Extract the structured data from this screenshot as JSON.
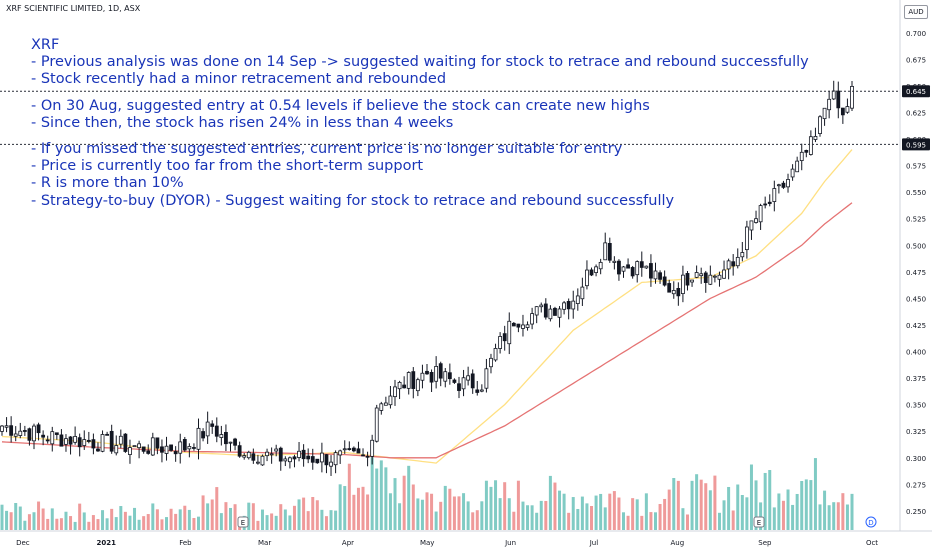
{
  "header": {
    "symbol": "XRF SCIENTIFIC LIMITED, 1D, ASX",
    "currency": "AUD"
  },
  "notes": {
    "block1": [
      "XRF",
      "- Previous analysis was done on 14 Sep -> suggested waiting for stock to retrace and rebound successfully",
      "- Stock recently had a minor retracement and rebounded"
    ],
    "block2": [
      "- On 30 Aug, suggested entry at 0.54 levels if believe the stock can create new highs",
      "- Since then, the stock has risen 24% in less than 4 weeks"
    ],
    "block3": [
      "- If you missed the suggested entries, current price is no longer suitable for entry",
      "- Price is currently too far from the short-term support",
      "- R is more than 10%",
      "- Strategy-to-buy (DYOR) - Suggest waiting for stock to retrace and rebound successfully"
    ]
  },
  "chart_data": {
    "type": "candlestick",
    "ylim": [
      0.232,
      0.712
    ],
    "y_ticks": [
      "0.250",
      "0.275",
      "0.300",
      "0.325",
      "0.350",
      "0.375",
      "0.400",
      "0.425",
      "0.450",
      "0.475",
      "0.500",
      "0.525",
      "0.550",
      "0.575",
      "0.600",
      "0.625",
      "0.650",
      "0.675",
      "0.700"
    ],
    "x_labels": [
      "Dec",
      "2021",
      "Feb",
      "Mar",
      "Apr",
      "May",
      "Jun",
      "Jul",
      "Aug",
      "Sep",
      "Oct"
    ],
    "price_lines": [
      {
        "value": 0.645,
        "label": "0.645"
      },
      {
        "value": 0.595,
        "label": "0.595"
      }
    ],
    "event_markers": [
      {
        "label": "E",
        "month": "Feb"
      },
      {
        "label": "E",
        "month": "Aug"
      },
      {
        "label": "D",
        "month": "Oct"
      }
    ],
    "colors": {
      "up_volume": "#80cbc4",
      "down_volume": "#ef9a9a",
      "ma_short": "#ffe082",
      "ma_long": "#e57373",
      "note_text": "#1a35b8"
    },
    "moving_averages": [
      {
        "name": "",
        "color": "#ffe082",
        "x": [
          0,
          20,
          40,
          55,
          75,
          85,
          95,
          110,
          125,
          140,
          155,
          165,
          175,
          180,
          186
        ],
        "y": [
          0.32,
          0.315,
          0.305,
          0.302,
          0.305,
          0.3,
          0.295,
          0.35,
          0.42,
          0.465,
          0.47,
          0.49,
          0.53,
          0.56,
          0.59
        ]
      },
      {
        "name": "",
        "color": "#e57373",
        "x": [
          0,
          20,
          40,
          55,
          75,
          85,
          95,
          110,
          125,
          140,
          155,
          165,
          175,
          180,
          186
        ],
        "y": [
          0.315,
          0.31,
          0.306,
          0.305,
          0.303,
          0.3,
          0.3,
          0.33,
          0.37,
          0.41,
          0.45,
          0.47,
          0.5,
          0.52,
          0.54
        ]
      }
    ],
    "key_points": [
      [
        0,
        0.33
      ],
      [
        10,
        0.32
      ],
      [
        20,
        0.315
      ],
      [
        30,
        0.31
      ],
      [
        40,
        0.31
      ],
      [
        46,
        0.33
      ],
      [
        50,
        0.31
      ],
      [
        55,
        0.305
      ],
      [
        60,
        0.3
      ],
      [
        70,
        0.3
      ],
      [
        75,
        0.3
      ],
      [
        80,
        0.3
      ],
      [
        82,
        0.35
      ],
      [
        88,
        0.37
      ],
      [
        93,
        0.38
      ],
      [
        100,
        0.37
      ],
      [
        105,
        0.37
      ],
      [
        108,
        0.4
      ],
      [
        112,
        0.43
      ],
      [
        120,
        0.44
      ],
      [
        125,
        0.45
      ],
      [
        132,
        0.5
      ],
      [
        135,
        0.48
      ],
      [
        140,
        0.48
      ],
      [
        145,
        0.46
      ],
      [
        148,
        0.46
      ],
      [
        152,
        0.48
      ],
      [
        155,
        0.47
      ],
      [
        160,
        0.48
      ],
      [
        164,
        0.52
      ],
      [
        170,
        0.55
      ],
      [
        175,
        0.58
      ],
      [
        178,
        0.6
      ],
      [
        181,
        0.645
      ],
      [
        184,
        0.62
      ],
      [
        186,
        0.645
      ]
    ],
    "volume_key_points": [
      [
        0,
        0.3
      ],
      [
        30,
        0.25
      ],
      [
        50,
        0.5
      ],
      [
        55,
        0.3
      ],
      [
        70,
        0.35
      ],
      [
        80,
        0.9
      ],
      [
        95,
        0.5
      ],
      [
        120,
        0.55
      ],
      [
        140,
        0.5
      ],
      [
        160,
        0.6
      ],
      [
        170,
        0.8
      ],
      [
        186,
        0.7
      ]
    ]
  }
}
